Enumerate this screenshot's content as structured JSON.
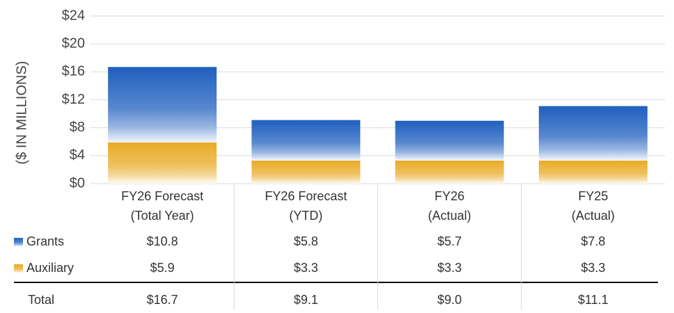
{
  "chart_data": {
    "type": "bar",
    "stacked": true,
    "y_label": "($ IN MILLIONS)",
    "categories": [
      [
        "FY26 Forecast",
        "(Total Year)"
      ],
      [
        "FY26 Forecast",
        "(YTD)"
      ],
      [
        "FY26",
        "(Actual)"
      ],
      [
        "FY25",
        "(Actual)"
      ]
    ],
    "series": [
      {
        "name": "Grants",
        "color": "#1f5fbf",
        "values": [
          10.8,
          5.8,
          5.7,
          7.8
        ],
        "value_labels": [
          "$10.8",
          "$5.8",
          "$5.7",
          "$7.8"
        ]
      },
      {
        "name": "Auxiliary",
        "color": "#e9ab25",
        "values": [
          5.9,
          3.3,
          3.3,
          3.3
        ],
        "value_labels": [
          "$5.9",
          "$3.3",
          "$3.3",
          "$3.3"
        ]
      }
    ],
    "totals": {
      "name": "Total",
      "values": [
        16.7,
        9.1,
        9.0,
        11.1
      ],
      "value_labels": [
        "$16.7",
        "$9.1",
        "$9.0",
        "$11.1"
      ]
    },
    "ylim": [
      0,
      24
    ],
    "yticks": [
      {
        "value": 0,
        "label": "$0"
      },
      {
        "value": 4,
        "label": "$4"
      },
      {
        "value": 8,
        "label": "$8"
      },
      {
        "value": 12,
        "label": "$12"
      },
      {
        "value": 16,
        "label": "$16"
      },
      {
        "value": 20,
        "label": "$20"
      },
      {
        "value": 24,
        "label": "$24"
      }
    ],
    "grid": true
  }
}
